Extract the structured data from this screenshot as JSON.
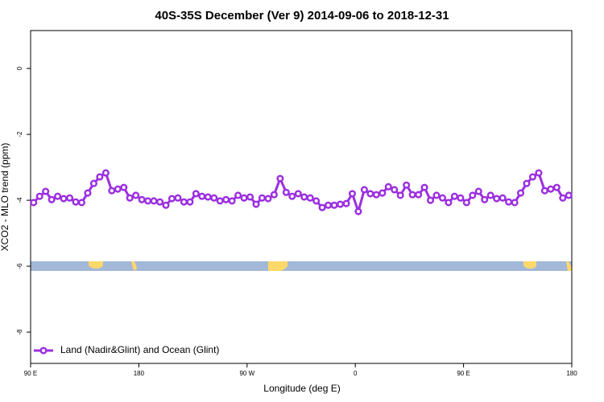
{
  "chart_data": {
    "type": "line",
    "title": "40S-35S December (Ver 9)   2014-09-06 to 2018-12-31",
    "x_label": "Longitude (deg E)",
    "y_label": "XCO2 - MLO trend (ppm)",
    "x": [
      92.5,
      97.5,
      102.5,
      107.5,
      112.5,
      117.5,
      122.5,
      127.5,
      132.5,
      137.5,
      142.5,
      147.5,
      152.5,
      157.5,
      162.5,
      167.5,
      172.5,
      177.5,
      182.5,
      187.5,
      192.5,
      197.5,
      202.5,
      207.5,
      212.5,
      217.5,
      222.5,
      227.5,
      232.5,
      237.5,
      242.5,
      247.5,
      252.5,
      257.5,
      262.5,
      267.5,
      272.5,
      277.5,
      282.5,
      287.5,
      292.5,
      297.5,
      302.5,
      307.5,
      312.5,
      317.5,
      322.5,
      327.5,
      332.5,
      337.5,
      342.5,
      347.5,
      352.5,
      357.5,
      362.5,
      367.5,
      372.5,
      377.5,
      382.5,
      387.5,
      392.5,
      397.5,
      402.5,
      407.5,
      412.5,
      417.5,
      422.5,
      427.5,
      432.5,
      437.5,
      442.5,
      447.5,
      452.5,
      457.5,
      462.5,
      467.5,
      472.5,
      477.5,
      482.5,
      487.5,
      492.5,
      497.5,
      502.5,
      507.5,
      512.5,
      517.5,
      522.5,
      527.5,
      532.5,
      537.5
    ],
    "series": [
      {
        "name": "Land (Nadir&Glint) and Ocean (Glint)",
        "color": "#9b2fe0",
        "values": [
          -4.07,
          -3.88,
          -3.73,
          -3.98,
          -3.88,
          -3.95,
          -3.93,
          -4.05,
          -4.07,
          -3.78,
          -3.49,
          -3.29,
          -3.17,
          -3.71,
          -3.66,
          -3.61,
          -3.93,
          -3.85,
          -3.98,
          -4.02,
          -4.02,
          -4.05,
          -4.15,
          -3.95,
          -3.93,
          -4.05,
          -4.05,
          -3.8,
          -3.88,
          -3.9,
          -3.93,
          -4.02,
          -3.98,
          -4.02,
          -3.85,
          -3.93,
          -3.9,
          -4.12,
          -3.93,
          -3.95,
          -3.83,
          -3.34,
          -3.76,
          -3.88,
          -3.8,
          -3.9,
          -3.93,
          -4.02,
          -4.22,
          -4.15,
          -4.15,
          -4.12,
          -4.1,
          -3.8,
          -4.34,
          -3.68,
          -3.8,
          -3.83,
          -3.78,
          -3.59,
          -3.68,
          -3.85,
          -3.54,
          -3.83,
          -3.83,
          -3.61,
          -4.0,
          -3.85,
          -3.93,
          -4.07,
          -3.88,
          -3.93,
          -4.07,
          -3.85,
          -3.73,
          -3.98,
          -3.85,
          -3.95,
          -3.93,
          -4.05,
          -4.07,
          -3.78,
          -3.49,
          -3.29,
          -3.17,
          -3.71,
          -3.66,
          -3.61,
          -3.93,
          -3.85
        ]
      }
    ],
    "xlim": [
      90,
      540
    ],
    "xticks": [
      {
        "value": 90,
        "label": "90 E"
      },
      180,
      {
        "value": 270,
        "label": "90 W"
      },
      {
        "value": 360,
        "label": "0"
      },
      {
        "value": 450,
        "label": "90 E"
      },
      {
        "value": 540,
        "label": "180"
      }
    ],
    "ylim": [
      -8.95,
      1.15
    ],
    "yticks": [
      0,
      -2,
      -4,
      -6,
      -8
    ],
    "legend": "bottom-left"
  }
}
